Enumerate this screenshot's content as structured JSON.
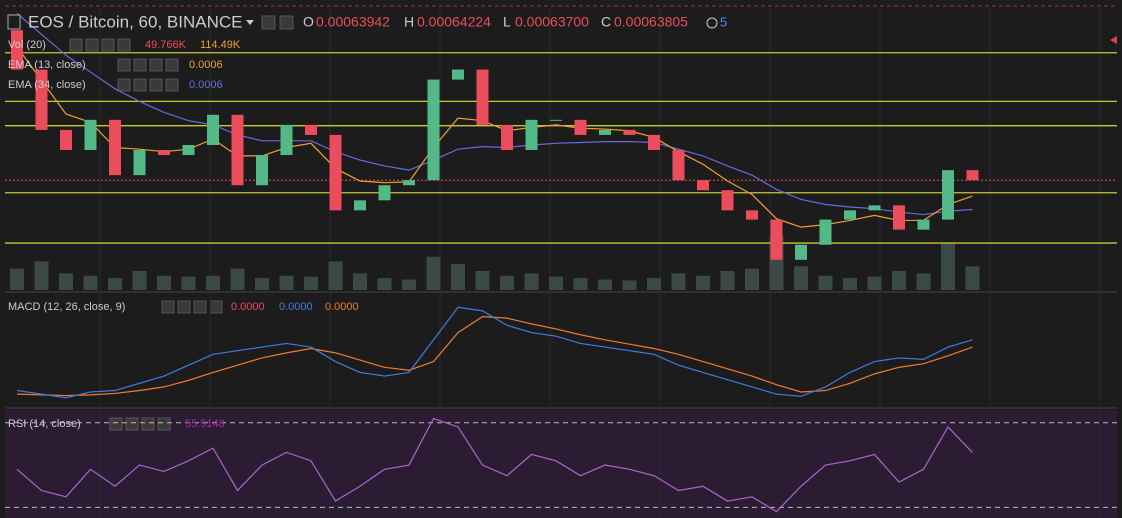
{
  "header": {
    "title": "EOS / Bitcoin, 60, BINANCE",
    "o_label": "O",
    "o": "0.00063942",
    "h_label": "H",
    "h": "0.00064224",
    "l_label": "L",
    "l": "0.00063700",
    "c_label": "C",
    "c": "0.00063805",
    "alerts": "5"
  },
  "legends": {
    "vol": "Vol (20)",
    "vol_value": "49.766K",
    "vol_ma": "114.49K",
    "ema13": "EMA (13, close)",
    "ema13_value": "0.0006",
    "ema34": "EMA (34, close)",
    "ema34_value": "0.0006",
    "macd": "MACD (12, 26, close, 9)",
    "macd_hist": "0.0000",
    "macd_value": "0.0000",
    "macd_signal": "0.0000",
    "rsi": "RSI (14, close)",
    "rsi_value": "55.9148"
  },
  "chart_data": {
    "type": "candlestick",
    "open": [
      0.000656,
      0.0006513,
      0.0006441,
      0.0006417,
      0.0006453,
      0.0006387,
      0.0006417,
      0.0006411,
      0.0006423,
      0.0006459,
      0.0006375,
      0.0006411,
      0.0006447,
      0.0006435,
      0.0006345,
      0.0006357,
      0.0006375,
      0.0006381,
      0.0006501,
      0.0006513,
      0.0006447,
      0.0006417,
      0.0006453,
      0.0006453,
      0.0006435,
      0.0006441,
      0.0006435,
      0.0006417,
      0.0006381,
      0.0006369,
      0.0006345,
      0.0006334,
      0.0006286,
      0.0006304,
      0.0006334,
      0.0006345,
      0.0006351,
      0.0006322,
      0.0006334,
      0.0006393
    ],
    "close": [
      0.0006513,
      0.0006441,
      0.0006417,
      0.0006453,
      0.0006387,
      0.0006417,
      0.0006411,
      0.0006423,
      0.0006459,
      0.0006375,
      0.0006411,
      0.0006447,
      0.0006435,
      0.0006345,
      0.0006357,
      0.0006375,
      0.0006381,
      0.0006501,
      0.0006513,
      0.0006447,
      0.0006417,
      0.0006453,
      0.0006453,
      0.0006435,
      0.0006441,
      0.0006435,
      0.0006417,
      0.0006381,
      0.0006369,
      0.0006345,
      0.0006334,
      0.0006286,
      0.0006304,
      0.0006334,
      0.0006345,
      0.0006351,
      0.0006322,
      0.0006334,
      0.0006393,
      0.0006381
    ],
    "ema13": [
      0.000654,
      0.00065,
      0.000646,
      0.000645,
      0.000642,
      0.0006418,
      0.0006415,
      0.0006418,
      0.000643,
      0.000641,
      0.000641,
      0.000642,
      0.0006425,
      0.0006395,
      0.000638,
      0.0006378,
      0.0006379,
      0.000642,
      0.0006455,
      0.0006452,
      0.000644,
      0.0006444,
      0.0006447,
      0.0006443,
      0.0006442,
      0.000644,
      0.0006432,
      0.0006415,
      0.00064,
      0.000638,
      0.0006364,
      0.0006335,
      0.0006325,
      0.0006328,
      0.0006333,
      0.0006339,
      0.0006333,
      0.0006333,
      0.0006352,
      0.0006362
    ],
    "ema34": [
      0.000658,
      0.0006555,
      0.000653,
      0.000651,
      0.000649,
      0.0006475,
      0.0006462,
      0.0006452,
      0.0006447,
      0.0006435,
      0.0006428,
      0.0006428,
      0.0006428,
      0.0006415,
      0.0006405,
      0.0006398,
      0.0006393,
      0.0006405,
      0.0006418,
      0.0006421,
      0.000642,
      0.0006423,
      0.0006425,
      0.0006426,
      0.0006427,
      0.0006427,
      0.0006426,
      0.0006418,
      0.000641,
      0.0006398,
      0.0006387,
      0.000637,
      0.0006358,
      0.0006352,
      0.0006349,
      0.0006347,
      0.0006343,
      0.000634,
      0.0006344,
      0.0006346
    ],
    "levels": [
      0.0006533,
      0.0006475,
      0.0006446,
      0.0006366,
      0.0006306
    ],
    "ylim": [
      0.000625,
      0.000659
    ],
    "volume": [
      45000,
      60000,
      35000,
      30000,
      25000,
      40000,
      30000,
      28000,
      30000,
      45000,
      25000,
      30000,
      28000,
      60000,
      35000,
      25000,
      22000,
      70000,
      55000,
      40000,
      30000,
      35000,
      28000,
      25000,
      22000,
      20000,
      25000,
      35000,
      30000,
      40000,
      45000,
      114490,
      50000,
      30000,
      25000,
      28000,
      40000,
      35000,
      100000,
      49766
    ],
    "volume_lim": [
      0,
      600000
    ],
    "macd": [
      -4e-06,
      -4.5e-06,
      -5e-06,
      -4.2e-06,
      -4e-06,
      -3e-06,
      -2e-06,
      -5e-07,
      1e-06,
      1.5e-06,
      2e-06,
      2.5e-06,
      2e-06,
      0,
      -1.5e-06,
      -2e-06,
      -1.5e-06,
      3e-06,
      7.5e-06,
      7e-06,
      5e-06,
      4e-06,
      3.5e-06,
      2.5e-06,
      2e-06,
      1.5e-06,
      1e-06,
      -5e-07,
      -1.5e-06,
      -2.5e-06,
      -3.5e-06,
      -4.5e-06,
      -4.8e-06,
      -3.5e-06,
      -1.5e-06,
      0,
      5e-07,
      3e-07,
      2e-06,
      3e-06
    ],
    "signal": [
      -4.5e-06,
      -4.6e-06,
      -4.7e-06,
      -4.6e-06,
      -4.4e-06,
      -4e-06,
      -3.5e-06,
      -2.6e-06,
      -1.5e-06,
      -5e-07,
      5e-07,
      1.2e-06,
      1.8e-06,
      1.2e-06,
      2e-07,
      -8e-07,
      -1.2e-06,
      0,
      4e-06,
      6.2e-06,
      6e-06,
      5.2e-06,
      4.5e-06,
      3.7e-06,
      3e-06,
      2.4e-06,
      1.8e-06,
      1e-06,
      0,
      -1e-06,
      -2e-06,
      -3.2e-06,
      -4.2e-06,
      -4e-06,
      -3e-06,
      -1.7e-06,
      -8e-07,
      -3e-07,
      8e-07,
      2e-06
    ],
    "macd_lim": [
      -6e-06,
      8.5e-06
    ],
    "rsi": [
      48,
      38,
      35,
      48,
      40,
      50,
      47,
      52,
      58,
      38,
      50,
      56,
      52,
      33,
      40,
      48,
      50,
      72,
      68,
      50,
      45,
      55,
      52,
      45,
      50,
      48,
      45,
      38,
      40,
      33,
      35,
      28,
      40,
      50,
      52,
      55,
      42,
      48,
      68,
      55.9148
    ],
    "rsi_lim": [
      25,
      76
    ],
    "rsi_bands": [
      70,
      30
    ],
    "colors": {
      "up": "#53b987",
      "down": "#eb4d5c",
      "ema13": "#f0a030",
      "ema34": "#6a6ae0",
      "level": "#c8c832",
      "volume": "#3c4a46",
      "macd": "#3d7de0",
      "signal": "#f07a30",
      "rsi": "#a86ac8"
    }
  }
}
